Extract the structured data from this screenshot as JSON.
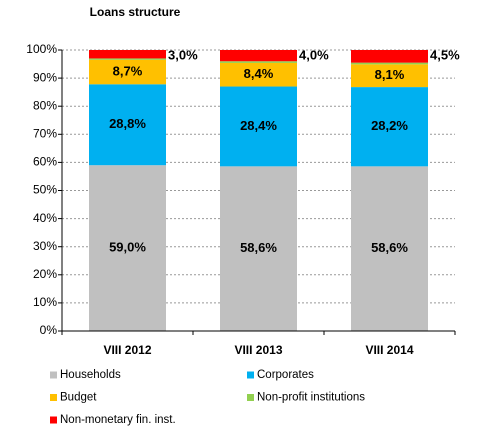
{
  "chart_data": {
    "type": "stacked_bar",
    "title": "Loans structure",
    "categories": [
      "VIII 2012",
      "VIII 2013",
      "VIII 2014"
    ],
    "series": [
      {
        "name": "Households",
        "color": "#c0c0c0",
        "label_color": "#000000",
        "values": [
          59.0,
          58.6,
          58.6
        ],
        "value_labels": [
          "59,0%",
          "58,6%",
          "58,6%"
        ]
      },
      {
        "name": "Corporates",
        "color": "#00b0f0",
        "label_color": "#ffffff",
        "values": [
          28.8,
          28.4,
          28.2
        ],
        "value_labels": [
          "28,8%",
          "28,4%",
          "28,2%"
        ]
      },
      {
        "name": "Budget",
        "color": "#ffc000",
        "label_color": "#000000",
        "values": [
          8.7,
          8.4,
          8.1
        ],
        "value_labels": [
          "8,7%",
          "8,4%",
          "8,1%"
        ]
      },
      {
        "name": "Non-profit institutions",
        "color": "#92d050",
        "values": [
          0.5,
          0.6,
          0.6
        ]
      },
      {
        "name": "Non-monetary fin. inst.",
        "color": "#ff0000",
        "label_color": "#000000",
        "values": [
          3.0,
          4.0,
          4.5
        ],
        "value_labels": [
          "3,0%",
          "4,0%",
          "4,5%"
        ]
      }
    ],
    "ylim": [
      0,
      100
    ],
    "yticks": [
      {
        "value": 0,
        "label": "0%"
      },
      {
        "value": 10,
        "label": "10%"
      },
      {
        "value": 20,
        "label": "20%"
      },
      {
        "value": 30,
        "label": "30%"
      },
      {
        "value": 40,
        "label": "40%"
      },
      {
        "value": 50,
        "label": "50%"
      },
      {
        "value": 60,
        "label": "60%"
      },
      {
        "value": 70,
        "label": "70%"
      },
      {
        "value": 80,
        "label": "80%"
      },
      {
        "value": 90,
        "label": "90%"
      },
      {
        "value": 100,
        "label": "100%"
      }
    ],
    "grid": true
  }
}
